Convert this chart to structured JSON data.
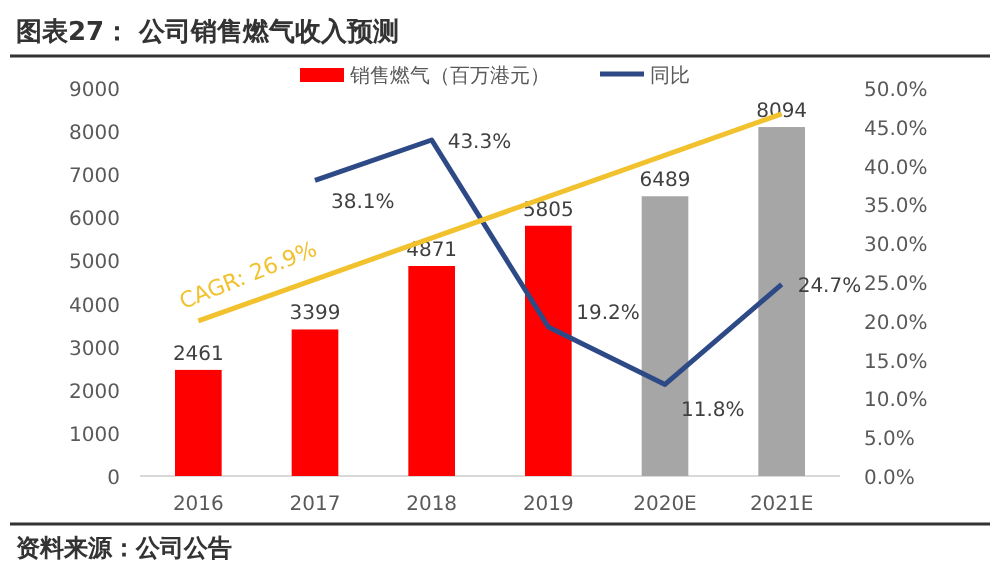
{
  "chart_data": {
    "type": "bar",
    "title": "图表27：  公司销售燃气收入预测",
    "categories": [
      "2016",
      "2017",
      "2018",
      "2019",
      "2020E",
      "2021E"
    ],
    "series": [
      {
        "name": "销售燃气（百万港元）",
        "value_labels": [
          "2461",
          "3399",
          "4871",
          "5805",
          "6489",
          "8094"
        ],
        "colors": [
          "#ff0000",
          "#ff0000",
          "#ff0000",
          "#ff0000",
          "#a6a6a6",
          "#a6a6a6"
        ],
        "values": [
          2461,
          3399,
          4871,
          5805,
          6489,
          8094
        ]
      },
      {
        "name": "同比",
        "type": "line",
        "axis": "y2",
        "color": "#2e4a86",
        "values": [
          null,
          38.1,
          43.3,
          19.2,
          11.8,
          24.7
        ],
        "value_labels": [
          null,
          "38.1%",
          "43.3%",
          "19.2%",
          "11.8%",
          "24.7%"
        ]
      },
      {
        "type": "line",
        "color": "#f2c12e",
        "values": [
          3600,
          null,
          null,
          null,
          null,
          8400
        ]
      }
    ],
    "ylim": [
      0,
      9000
    ],
    "yticks": [
      0,
      1000,
      2000,
      3000,
      4000,
      5000,
      6000,
      7000,
      8000,
      9000
    ],
    "y2lim": [
      0,
      50
    ],
    "y2ticks": [
      {
        "value": 0,
        "label": "0.0%"
      },
      {
        "value": 5,
        "label": "5.0%"
      },
      {
        "value": 10,
        "label": "10.0%"
      },
      {
        "value": 15,
        "label": "15.0%"
      },
      {
        "value": 20,
        "label": "20.0%"
      },
      {
        "value": 25,
        "label": "25.0%"
      },
      {
        "value": 30,
        "label": "30.0%"
      },
      {
        "value": 35,
        "label": "35.0%"
      },
      {
        "value": 40,
        "label": "40.0%"
      },
      {
        "value": 45,
        "label": "45.0%"
      },
      {
        "value": 50,
        "label": "50.0%"
      }
    ],
    "legend": "top",
    "annotations": [
      "CAGR: 26.9%",
      "资料来源：公司公告"
    ]
  }
}
